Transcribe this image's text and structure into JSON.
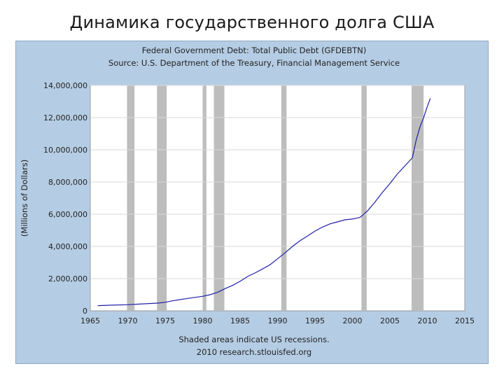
{
  "slide": {
    "title": "Динамика государственного долга  США"
  },
  "chart_data": {
    "type": "line",
    "title": "Federal Government Debt: Total Public Debt (GFDEBTN)",
    "subtitle": "Source: U.S. Department of the Treasury, Financial Management Service",
    "ylabel": "(Millions of Dollars)",
    "xlabel": "",
    "xlim": [
      1965,
      2015
    ],
    "ylim": [
      0,
      14000000
    ],
    "x_ticks": [
      1965,
      1970,
      1975,
      1980,
      1985,
      1990,
      1995,
      2000,
      2005,
      2010,
      2015
    ],
    "y_ticks": [
      0,
      2000000,
      4000000,
      6000000,
      8000000,
      10000000,
      12000000,
      14000000
    ],
    "x_tick_labels": [
      "1965",
      "1970",
      "1975",
      "1980",
      "1985",
      "1990",
      "1995",
      "2000",
      "2005",
      "2010",
      "2015"
    ],
    "y_tick_labels": [
      "0",
      "2,000,000",
      "4,000,000",
      "6,000,000",
      "8,000,000",
      "10,000,000",
      "12,000,000",
      "14,000,000"
    ],
    "grid": true,
    "recessions": [
      {
        "start": 1969.9,
        "end": 1970.9
      },
      {
        "start": 1973.9,
        "end": 1975.2
      },
      {
        "start": 1980.0,
        "end": 1980.5
      },
      {
        "start": 1981.5,
        "end": 1982.9
      },
      {
        "start": 1990.5,
        "end": 1991.2
      },
      {
        "start": 2001.2,
        "end": 2001.9
      },
      {
        "start": 2007.9,
        "end": 2009.5
      }
    ],
    "series": [
      {
        "name": "",
        "color": "#1f1fa8",
        "x": [
          1966,
          1968,
          1970,
          1972,
          1974,
          1975,
          1976,
          1978,
          1980,
          1981,
          1982,
          1983,
          1984,
          1985,
          1986,
          1987,
          1988,
          1989,
          1990,
          1991,
          1992,
          1993,
          1994,
          1995,
          1996,
          1997,
          1998,
          1999,
          2000,
          2001,
          2002,
          2003,
          2004,
          2005,
          2006,
          2007,
          2008,
          2008.5,
          2009,
          2009.5,
          2010,
          2010.4
        ],
        "y": [
          320000,
          350000,
          380000,
          430000,
          480000,
          530000,
          620000,
          770000,
          900000,
          1000000,
          1150000,
          1380000,
          1580000,
          1830000,
          2130000,
          2350000,
          2600000,
          2860000,
          3230000,
          3600000,
          4000000,
          4350000,
          4650000,
          4950000,
          5200000,
          5400000,
          5520000,
          5650000,
          5700000,
          5800000,
          6200000,
          6750000,
          7350000,
          7900000,
          8500000,
          9000000,
          9500000,
          10600000,
          11400000,
          12000000,
          12700000,
          13200000
        ]
      }
    ],
    "footnote_line1": "Shaded areas indicate US recessions.",
    "footnote_line2": "2010 research.stlouisfed.org"
  }
}
